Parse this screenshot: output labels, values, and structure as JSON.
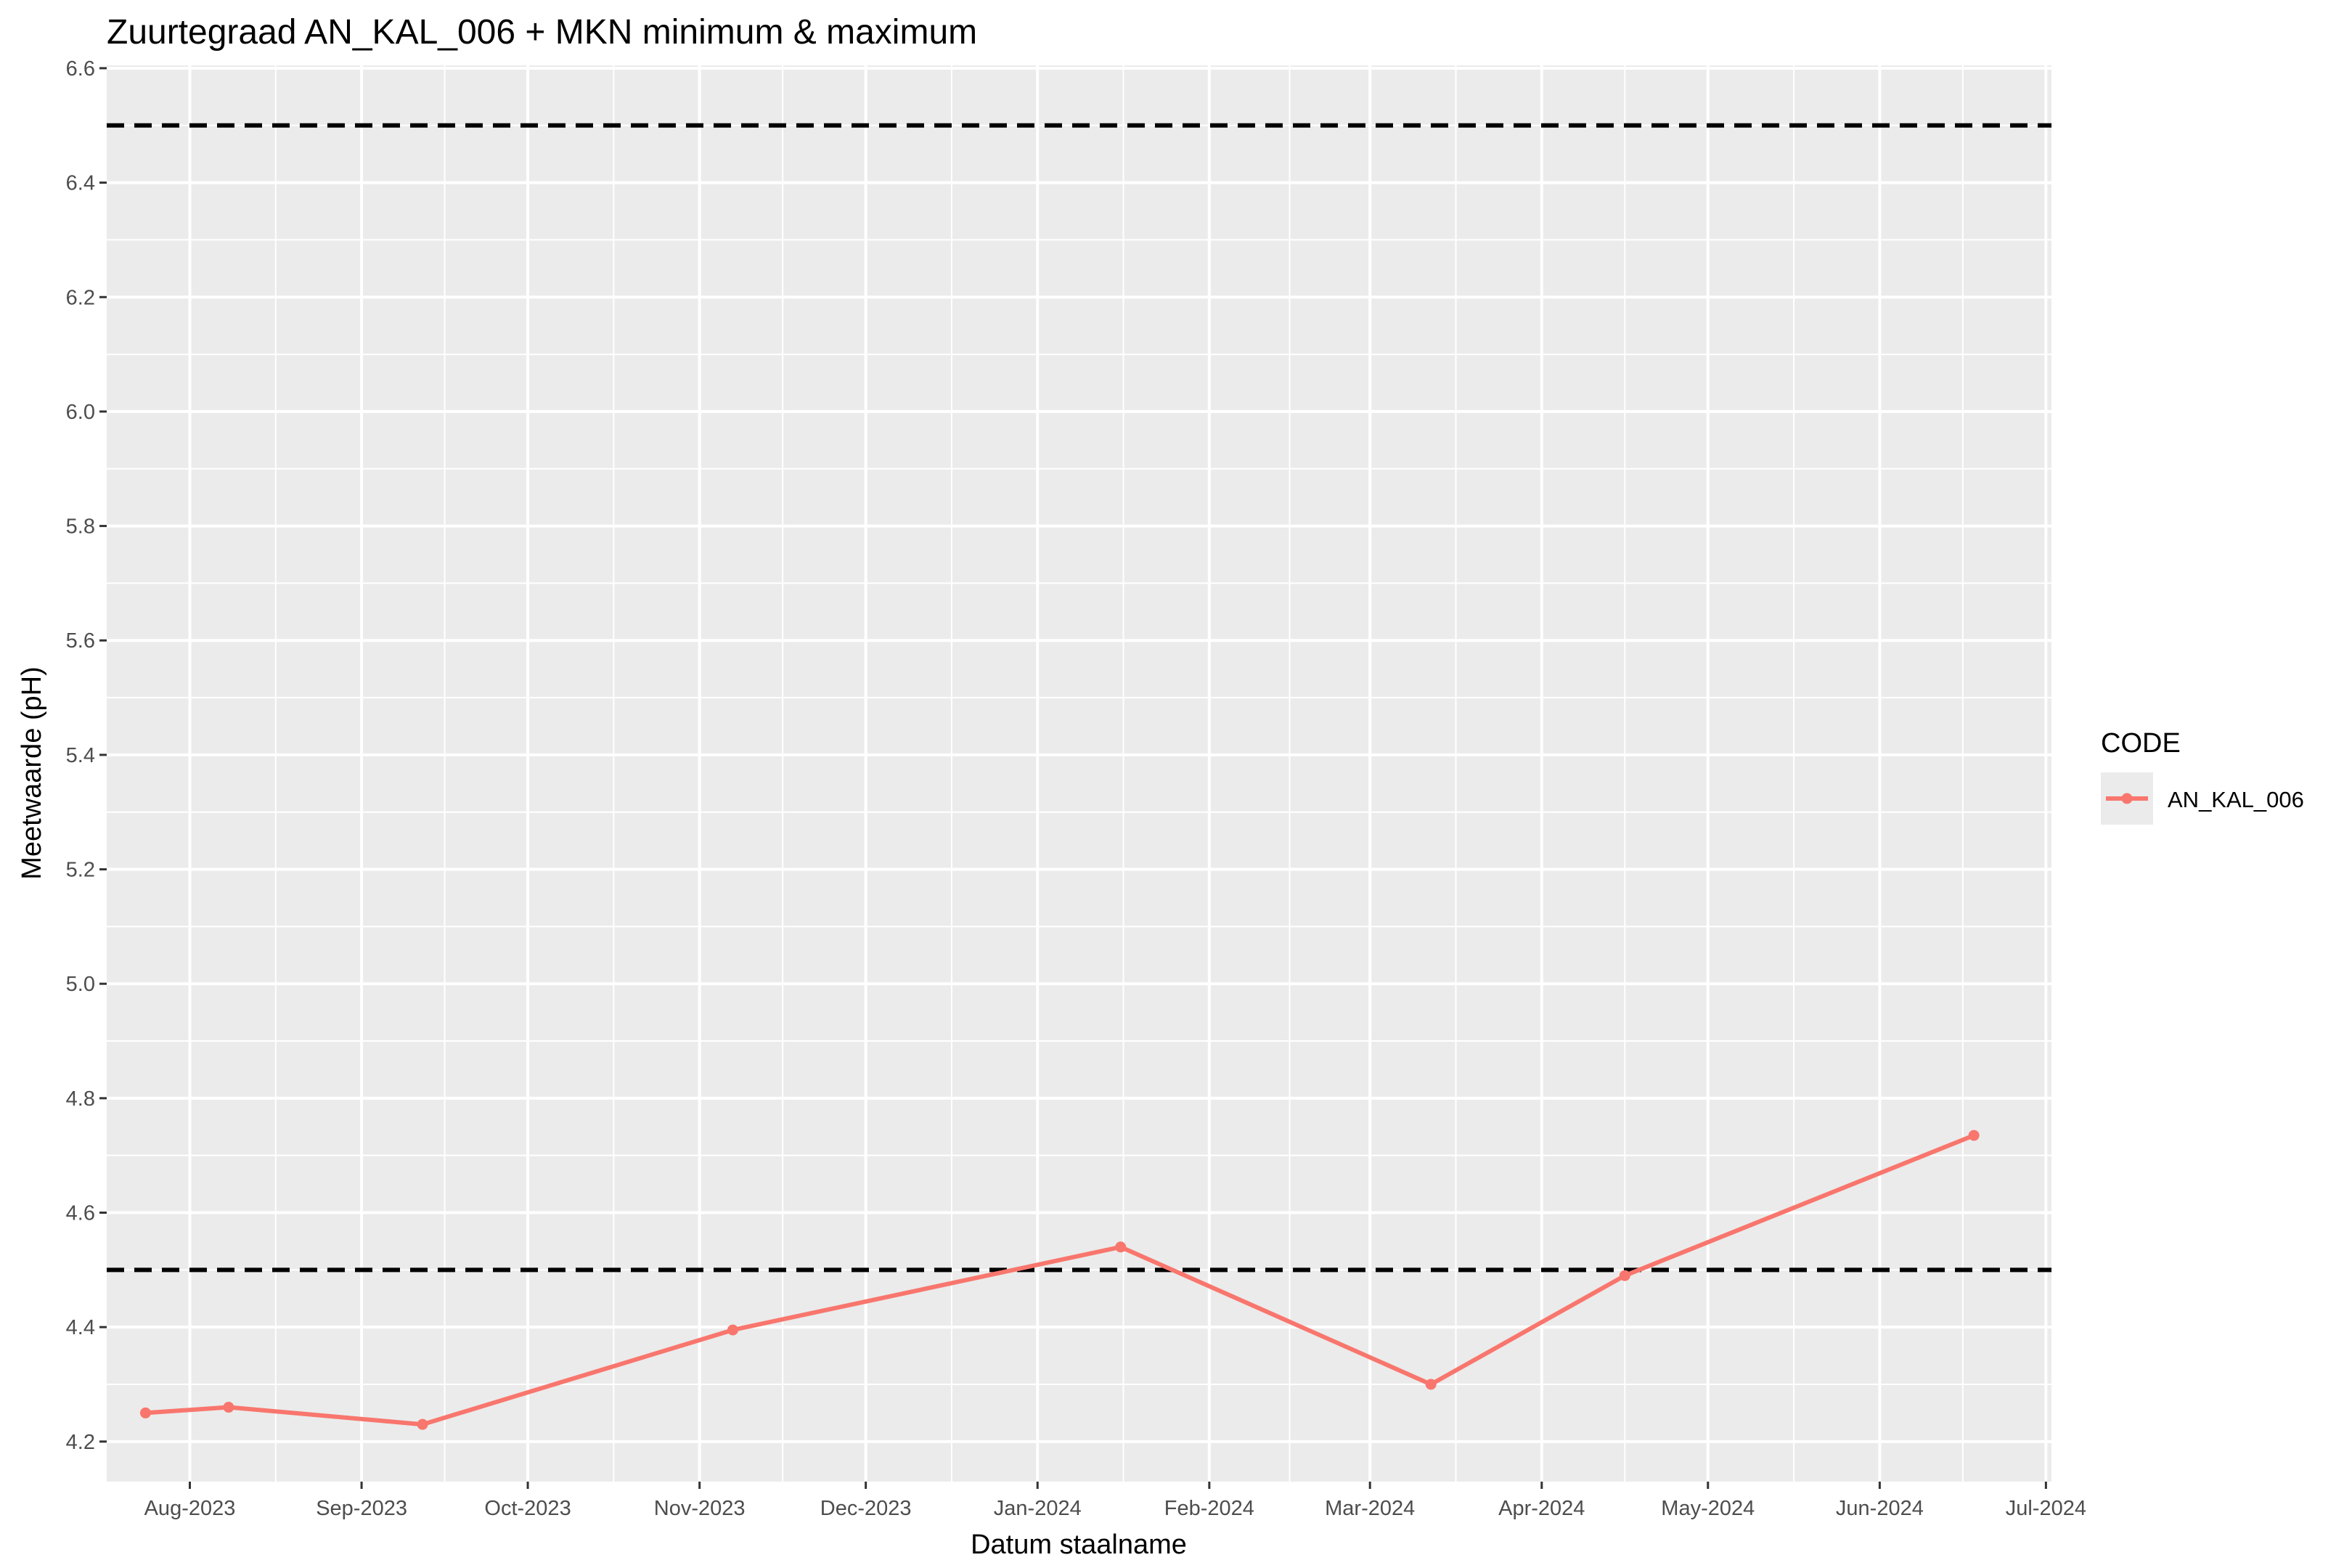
{
  "chart_data": {
    "type": "line",
    "title": "Zuurtegraad AN_KAL_006 + MKN minimum & maximum",
    "xlabel": "Datum staalname",
    "ylabel": "Meetwaarde (pH)",
    "x_ticks": [
      "Aug-2023",
      "Sep-2023",
      "Oct-2023",
      "Nov-2023",
      "Dec-2023",
      "Jan-2024",
      "Feb-2024",
      "Mar-2024",
      "Apr-2024",
      "May-2024",
      "Jun-2024",
      "Jul-2024"
    ],
    "x_tick_dates": [
      "2023-08-01",
      "2023-09-01",
      "2023-10-01",
      "2023-11-01",
      "2023-12-01",
      "2024-01-01",
      "2024-02-01",
      "2024-03-01",
      "2024-04-01",
      "2024-05-01",
      "2024-06-01",
      "2024-07-01"
    ],
    "y_ticks": [
      "4.2",
      "4.4",
      "4.6",
      "4.8",
      "5.0",
      "5.2",
      "5.4",
      "5.6",
      "5.8",
      "6.0",
      "6.2",
      "6.4",
      "6.6"
    ],
    "xlim": [
      "2023-07-17",
      "2024-07-02"
    ],
    "ylim": [
      4.13,
      6.605
    ],
    "grid": true,
    "legend": {
      "title": "CODE",
      "position": "right"
    },
    "series": [
      {
        "name": "AN_KAL_006",
        "color": "#F8766D",
        "points": [
          {
            "date": "2023-07-24",
            "value": 4.25
          },
          {
            "date": "2023-08-08",
            "value": 4.26
          },
          {
            "date": "2023-09-12",
            "value": 4.23
          },
          {
            "date": "2023-11-07",
            "value": 4.395
          },
          {
            "date": "2024-01-16",
            "value": 4.54
          },
          {
            "date": "2024-03-12",
            "value": 4.3
          },
          {
            "date": "2024-04-16",
            "value": 4.49
          },
          {
            "date": "2024-06-18",
            "value": 4.735
          }
        ]
      }
    ],
    "reference_lines": [
      {
        "value": 6.5,
        "style": "dashed",
        "color": "#000000"
      },
      {
        "value": 4.5,
        "style": "dashed",
        "color": "#000000"
      }
    ]
  }
}
